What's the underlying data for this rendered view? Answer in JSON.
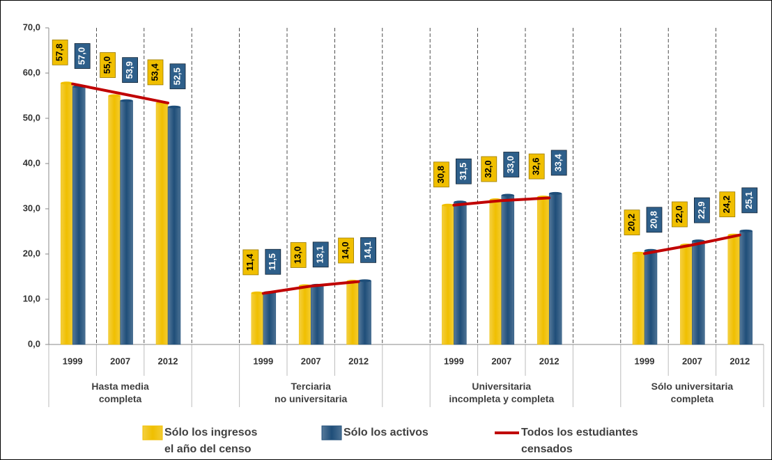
{
  "chart_data": {
    "type": "bar",
    "categories": [
      "1999",
      "2007",
      "2012",
      "1999",
      "2007",
      "2012",
      "1999",
      "2007",
      "2012",
      "1999",
      "2007",
      "2012"
    ],
    "groups": [
      "Hasta media\ncompleta",
      "Terciaria\nno universitaria",
      "Universitaria\nincompleta y completa",
      "Sólo universitaria\ncompleta"
    ],
    "series": [
      {
        "name": "Sólo los ingresos\nel año del censo",
        "color": "#f0bf00",
        "values": [
          57.8,
          55.0,
          53.4,
          11.4,
          13.0,
          14.0,
          30.8,
          32.0,
          32.6,
          20.2,
          22.0,
          24.2
        ],
        "value_labels": [
          "57,8",
          "55,0",
          "53,4",
          "11,4",
          "13,0",
          "14,0",
          "30,8",
          "32,0",
          "32,6",
          "20,2",
          "22,0",
          "24,2"
        ]
      },
      {
        "name": "Sólo los activos",
        "color": "#1f4e79",
        "values": [
          57.0,
          53.9,
          52.5,
          11.5,
          13.1,
          14.1,
          31.5,
          33.0,
          33.4,
          20.8,
          22.9,
          25.1
        ],
        "value_labels": [
          "57,0",
          "53,9",
          "52,5",
          "11,5",
          "13,1",
          "14,1",
          "31,5",
          "33,0",
          "33,4",
          "20,8",
          "22,9",
          "25,1"
        ]
      },
      {
        "name": "Todos los estudiantes\ncensados",
        "color": "#c00000",
        "type": "line",
        "values": [
          57.6,
          55.5,
          53.4,
          11.3,
          12.9,
          13.9,
          30.8,
          31.8,
          32.4,
          20.1,
          22.0,
          24.2
        ]
      }
    ],
    "ylim": [
      0,
      70
    ],
    "yticks": [
      {
        "value": 0,
        "label": "0,0"
      },
      {
        "value": 10,
        "label": "10,0"
      },
      {
        "value": 20,
        "label": "20,0"
      },
      {
        "value": 30,
        "label": "30,0"
      },
      {
        "value": 40,
        "label": "40,0"
      },
      {
        "value": 50,
        "label": "50,0"
      },
      {
        "value": 60,
        "label": "60,0"
      },
      {
        "value": 70,
        "label": "70,0"
      }
    ]
  }
}
